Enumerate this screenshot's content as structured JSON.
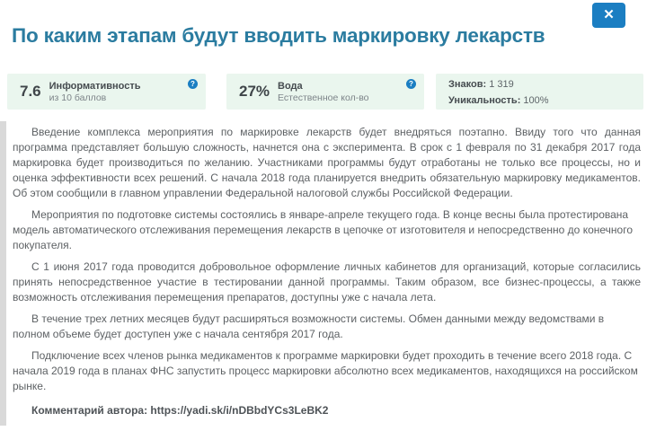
{
  "window": {
    "close_glyph": "✕"
  },
  "header": {
    "title": "По каким этапам будут вводить маркировку лекарств"
  },
  "metrics": {
    "help_icon_glyph": "?",
    "cards": [
      {
        "value": "7.6",
        "label": "Информативность",
        "sublabel": "из 10 баллов"
      },
      {
        "value": "27%",
        "label": "Вода",
        "sublabel": "Естественное кол-во"
      },
      {
        "rows": [
          {
            "key": "Знаков:",
            "value": "1 319"
          },
          {
            "key": "Уникальность:",
            "value": "100%"
          }
        ]
      }
    ]
  },
  "article": {
    "paragraphs": [
      "Введение комплекса мероприятия по маркировке лекарств будет внедряться поэтапно. Ввиду того что данная программа представляет большую сложность, начнется она с эксперимента. В срок с 1 февраля по 31 декабря 2017 года маркировка будет производиться по желанию. Участниками программы будут отработаны не только все процессы, но и оценка эффективности всех решений. С начала 2018 года планируется внедрить обязательную маркировку медикаментов. Об этом сообщили в главном управлении Федеральной налоговой службы Российской Федерации.",
      "Мероприятия по подготовке системы состоялись в январе-апреле текущего года. В конце весны была протестирована модель автоматического отслеживания перемещения лекарств в цепочке от изготовителя и непосредственно до конечного покупателя.",
      "С 1 июня 2017 года проводится добровольное оформление личных кабинетов для организаций, которые согласились принять непосредственное участие в тестировании данной программы. Таким образом, все бизнес-процессы, а также возможность отслеживания перемещения препаратов, доступны уже с начала лета.",
      "В течение трех летних месяцев будут расширяться возможности системы. Обмен данными между ведомствами в полном объеме будет доступен уже с начала сентября 2017 года.",
      "Подключение всех членов рынка медикаментов к программе маркировки будет проходить в течение всего 2018 года. С начала 2019 года в планах ФНС запустить процесс маркировки абсолютно всех медикаментов, находящихся на российском рынке."
    ],
    "comment_label": "Комментарий автора: ",
    "comment_link": "https://yadi.sk/i/nDBbdYCs3LeBK2"
  },
  "colors": {
    "accent_blue": "#1b7ec2",
    "title_teal": "#2b7ca0",
    "card_background": "#eaf6ee",
    "body_text": "#5d6164",
    "left_strip": "#d9d9d9"
  }
}
